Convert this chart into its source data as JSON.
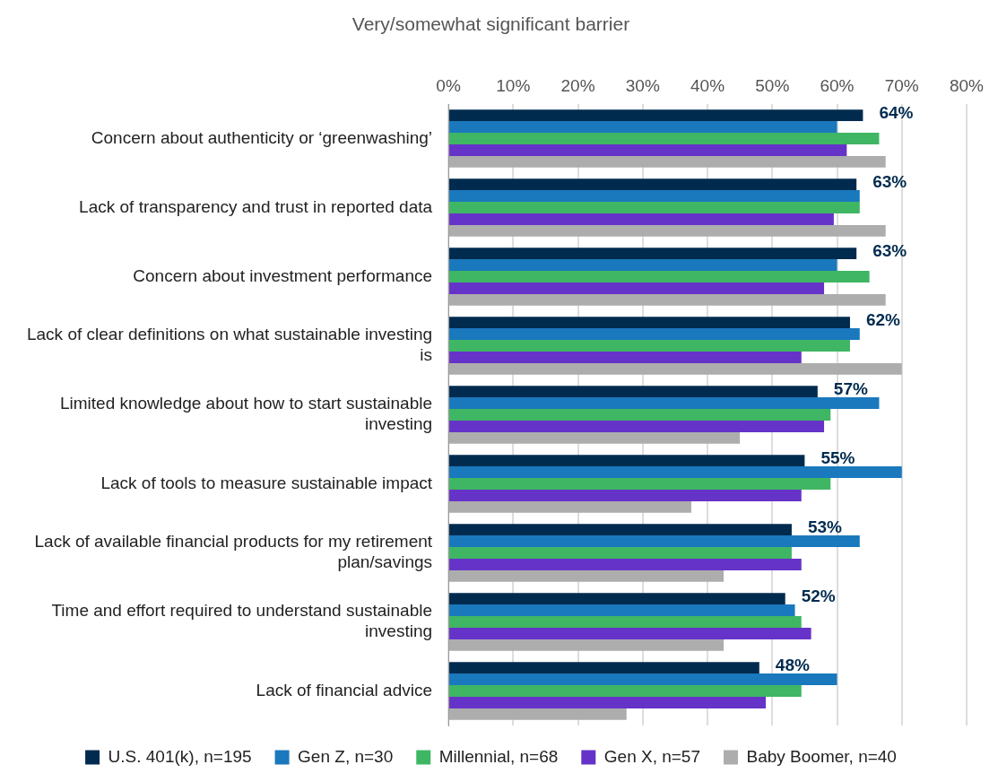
{
  "chart_data": {
    "type": "bar",
    "orientation": "horizontal",
    "title": "Very/somewhat significant barrier",
    "categories": [
      "Concern about authenticity or ‘greenwashing’",
      "Lack of transparency and trust in reported data",
      "Concern about investment performance",
      "Lack of clear definitions on what sustainable investing is",
      "Limited knowledge about how to start sustainable investing",
      "Lack of tools to measure sustainable impact",
      "Lack of available financial products for my retirement plan/savings",
      "Time and effort required to understand sustainable investing",
      "Lack of financial advice"
    ],
    "series": [
      {
        "name": "U.S. 401(k), n=195",
        "color": "#002b4f",
        "values": [
          64,
          63,
          63,
          62,
          57,
          55,
          53,
          52,
          48
        ],
        "value_labels": [
          "64%",
          "63%",
          "63%",
          "62%",
          "57%",
          "55%",
          "53%",
          "52%",
          "48%"
        ]
      },
      {
        "name": "Gen Z, n=30",
        "color": "#1a78bd",
        "values": [
          60,
          63.5,
          60,
          63.5,
          66.5,
          70,
          63.5,
          53.5,
          60
        ]
      },
      {
        "name": "Millennial, n=68",
        "color": "#3fb663",
        "values": [
          66.5,
          63.5,
          65,
          62,
          59,
          59,
          53,
          54.5,
          54.5
        ]
      },
      {
        "name": "Gen X, n=57",
        "color": "#6633c8",
        "values": [
          61.5,
          59.5,
          58,
          54.5,
          58,
          54.5,
          54.5,
          56,
          49
        ]
      },
      {
        "name": "Baby Boomer, n=40",
        "color": "#adadad",
        "values": [
          67.5,
          67.5,
          67.5,
          70,
          45,
          37.5,
          42.5,
          42.5,
          27.5
        ]
      }
    ],
    "xlim": [
      0,
      80
    ],
    "xticks": [
      {
        "value": 0,
        "label": "0%"
      },
      {
        "value": 10,
        "label": "10%"
      },
      {
        "value": 20,
        "label": "20%"
      },
      {
        "value": 30,
        "label": "30%"
      },
      {
        "value": 40,
        "label": "40%"
      },
      {
        "value": 50,
        "label": "50%"
      },
      {
        "value": 60,
        "label": "60%"
      },
      {
        "value": 70,
        "label": "70%"
      },
      {
        "value": 80,
        "label": "80%"
      }
    ],
    "grid": "x",
    "legend": "bottom"
  }
}
